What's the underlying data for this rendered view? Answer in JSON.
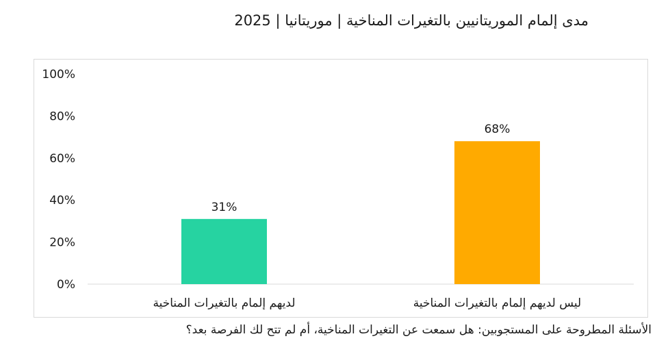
{
  "chart_data": {
    "type": "bar",
    "title": "مدى إلمام الموريتانيين بالتغيرات المناخية | موريتانيا | 2025",
    "categories": [
      "لديهم إلمام بالتغيرات المناخية",
      "ليس لديهم إلمام بالتغيرات المناخية"
    ],
    "values": [
      31,
      68
    ],
    "value_labels": [
      "31%",
      "68%"
    ],
    "colors": [
      "#26d3a1",
      "#ffaa00"
    ],
    "ylim": [
      0,
      100
    ],
    "yticks": [
      0,
      20,
      40,
      60,
      80,
      100
    ],
    "ytick_labels": [
      "0%",
      "20%",
      "40%",
      "60%",
      "80%",
      "100%"
    ],
    "grid": false,
    "legend": "none",
    "footnote": "الأسئلة المطروحة على المستجوبين: هل سمعت عن التغيرات المناخية، أم لم تتح لك الفرصة بعد؟"
  }
}
